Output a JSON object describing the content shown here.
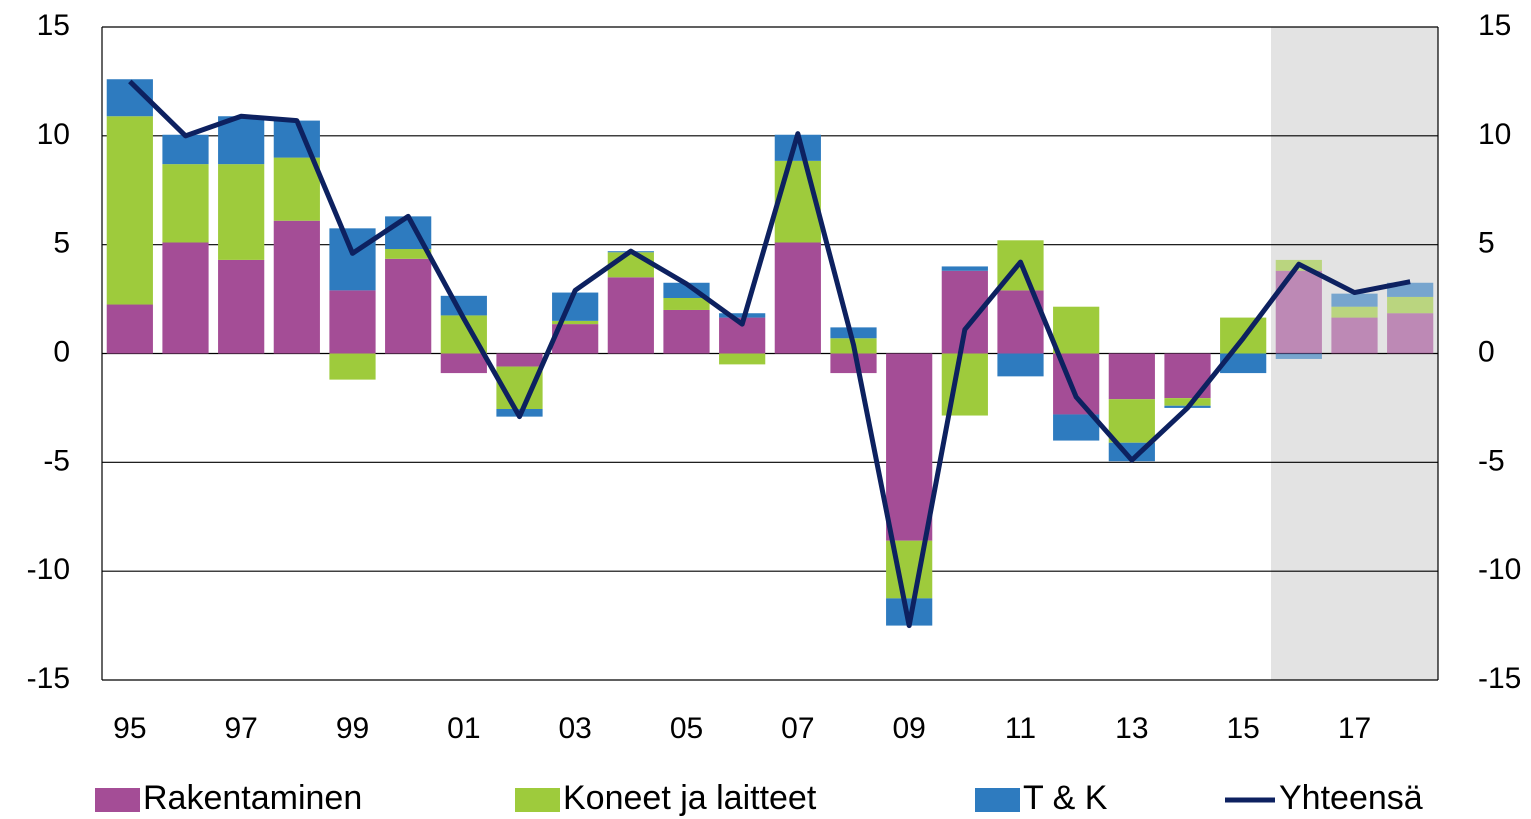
{
  "chart_data": {
    "type": "stacked_bar_line",
    "categories": [
      "95",
      null,
      "97",
      null,
      "99",
      null,
      "01",
      null,
      "03",
      null,
      "05",
      null,
      "07",
      null,
      "09",
      null,
      "11",
      null,
      "13",
      null,
      "15",
      null,
      "17",
      null
    ],
    "series": [
      {
        "name": "Rakentaminen",
        "color": "#a44d96",
        "kind": "bar",
        "values": [
          2.25,
          5.1,
          4.3,
          6.1,
          2.9,
          4.35,
          -0.9,
          -0.6,
          1.35,
          3.5,
          2.0,
          1.65,
          5.1,
          -0.9,
          -8.6,
          3.8,
          2.9,
          -2.8,
          -2.1,
          -2.05,
          0,
          3.8,
          1.65,
          1.85
        ]
      },
      {
        "name": "Koneet ja laitteet",
        "color": "#9ecb3c",
        "kind": "bar",
        "values": [
          8.65,
          3.6,
          4.4,
          2.9,
          -1.2,
          0.45,
          1.75,
          -1.95,
          0.15,
          1.15,
          0.55,
          -0.5,
          3.75,
          0.7,
          -2.65,
          -2.85,
          2.3,
          2.15,
          -2.0,
          -0.35,
          1.65,
          0.5,
          0.5,
          0.75
        ]
      },
      {
        "name": "T & K",
        "color": "#2e7bbf",
        "kind": "bar",
        "values": [
          1.7,
          1.35,
          2.2,
          1.7,
          2.85,
          1.5,
          0.9,
          -0.35,
          1.3,
          0.05,
          0.7,
          0.2,
          1.2,
          0.5,
          -1.25,
          0.2,
          -1.05,
          -1.2,
          -0.85,
          -0.1,
          -0.9,
          -0.25,
          0.6,
          0.65
        ]
      },
      {
        "name": "Yhteensä",
        "color": "#0d2160",
        "kind": "line",
        "values": [
          12.5,
          10.0,
          10.9,
          10.7,
          4.6,
          6.3,
          1.6,
          -2.9,
          2.9,
          4.7,
          3.2,
          1.35,
          10.1,
          0.4,
          -12.5,
          1.1,
          4.2,
          -2.0,
          -4.9,
          -2.5,
          0.7,
          4.1,
          2.8,
          3.3
        ]
      }
    ],
    "ylim": [
      -15,
      15
    ],
    "yticks": [
      -15,
      -10,
      -5,
      0,
      5,
      10,
      15
    ],
    "y2lim": [
      -15,
      15
    ],
    "y2ticks": [
      -15,
      -10,
      -5,
      0,
      5,
      10,
      15
    ],
    "grid": true,
    "legend": "bottom",
    "forecast_start_index": 21
  }
}
